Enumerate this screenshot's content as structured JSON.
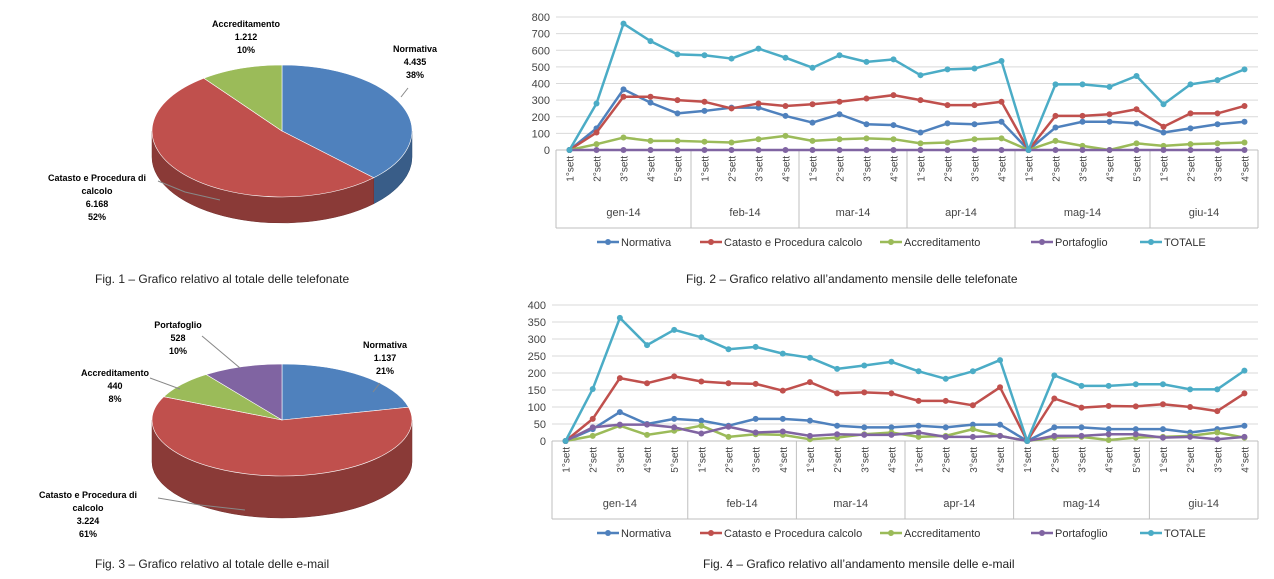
{
  "colors": {
    "normativa": "#4f81bd",
    "catasto": "#c0504d",
    "accreditamento": "#9bbb59",
    "portafoglio": "#8064a2",
    "totale": "#4bacc6"
  },
  "captions": {
    "fig1": "Fig. 1 – Grafico relativo al totale delle telefonate",
    "fig2": "Fig. 2 – Grafico relativo all’andamento mensile delle telefonate",
    "fig3": "Fig. 3 – Grafico relativo al totale delle e-mail",
    "fig4": "Fig. 4 – Grafico relativo all’andamento mensile delle e-mail"
  },
  "chart_data": [
    {
      "type": "pie",
      "slices": [
        {
          "name": "Normativa",
          "value": 4435,
          "value_label": "4.435",
          "percent": "38%"
        },
        {
          "name": "Catasto e Procedura di calcolo",
          "value": 6168,
          "value_label": "6.168",
          "percent": "52%"
        },
        {
          "name": "Accreditamento",
          "value": 1212,
          "value_label": "1.212",
          "percent": "10%"
        }
      ]
    },
    {
      "type": "line",
      "ylim": [
        0,
        800
      ],
      "yticks": [
        0,
        100,
        200,
        300,
        400,
        500,
        600,
        700,
        800
      ],
      "x": [
        "1°sett",
        "2°sett",
        "3°sett",
        "4°sett",
        "5°sett",
        "1°sett",
        "2°sett",
        "3°sett",
        "4°sett",
        "1°sett",
        "2°sett",
        "3°sett",
        "4°sett",
        "1°sett",
        "2°sett",
        "3°sett",
        "4°sett",
        "1°sett",
        "2°sett",
        "3°sett",
        "4°sett",
        "5°sett",
        "1°sett",
        "2°sett",
        "3°sett",
        "4°sett"
      ],
      "months": [
        {
          "label": "gen-14",
          "count": 5
        },
        {
          "label": "feb-14",
          "count": 4
        },
        {
          "label": "mar-14",
          "count": 4
        },
        {
          "label": "apr-14",
          "count": 4
        },
        {
          "label": "mag-14",
          "count": 5
        },
        {
          "label": "giu-14",
          "count": 4
        }
      ],
      "series": [
        {
          "name": "Normativa",
          "values": [
            0,
            130,
            365,
            285,
            220,
            235,
            255,
            255,
            205,
            165,
            215,
            155,
            150,
            105,
            160,
            155,
            170,
            0,
            135,
            170,
            170,
            160,
            105,
            130,
            155,
            170
          ]
        },
        {
          "name": "Catasto e Procedura calcolo",
          "values": [
            0,
            105,
            320,
            320,
            300,
            290,
            250,
            280,
            265,
            275,
            290,
            310,
            330,
            300,
            270,
            270,
            290,
            0,
            205,
            205,
            215,
            245,
            140,
            220,
            220,
            265
          ]
        },
        {
          "name": "Accreditamento",
          "values": [
            0,
            35,
            75,
            55,
            55,
            50,
            45,
            65,
            85,
            55,
            65,
            70,
            65,
            40,
            45,
            65,
            70,
            0,
            55,
            25,
            0,
            40,
            25,
            35,
            40,
            45
          ]
        },
        {
          "name": "Portafoglio",
          "values": [
            0,
            0,
            0,
            0,
            0,
            0,
            0,
            0,
            0,
            0,
            0,
            0,
            0,
            0,
            0,
            0,
            0,
            0,
            0,
            0,
            0,
            0,
            0,
            0,
            0,
            0
          ]
        },
        {
          "name": "TOTALE",
          "values": [
            0,
            280,
            760,
            655,
            575,
            570,
            550,
            610,
            555,
            495,
            570,
            530,
            545,
            450,
            485,
            490,
            535,
            0,
            395,
            395,
            380,
            445,
            275,
            395,
            420,
            485
          ]
        }
      ]
    },
    {
      "type": "pie",
      "slices": [
        {
          "name": "Normativa",
          "value": 1137,
          "value_label": "1.137",
          "percent": "21%"
        },
        {
          "name": "Catasto e Procedura di calcolo",
          "value": 3224,
          "value_label": "3.224",
          "percent": "61%"
        },
        {
          "name": "Accreditamento",
          "value": 440,
          "value_label": "440",
          "percent": "8%"
        },
        {
          "name": "Portafoglio",
          "value": 528,
          "value_label": "528",
          "percent": "10%"
        }
      ]
    },
    {
      "type": "line",
      "ylim": [
        0,
        400
      ],
      "yticks": [
        0,
        50,
        100,
        150,
        200,
        250,
        300,
        350,
        400
      ],
      "x": [
        "1°sett",
        "2°sett",
        "3°sett",
        "4°sett",
        "5°sett",
        "1°sett",
        "2°sett",
        "3°sett",
        "4°sett",
        "1°sett",
        "2°sett",
        "3°sett",
        "4°sett",
        "1°sett",
        "2°sett",
        "3°sett",
        "4°sett",
        "1°sett",
        "2°sett",
        "3°sett",
        "4°sett",
        "5°sett",
        "1°sett",
        "2°sett",
        "3°sett",
        "4°sett"
      ],
      "months": [
        {
          "label": "gen-14",
          "count": 5
        },
        {
          "label": "feb-14",
          "count": 4
        },
        {
          "label": "mar-14",
          "count": 4
        },
        {
          "label": "apr-14",
          "count": 4
        },
        {
          "label": "mag-14",
          "count": 5
        },
        {
          "label": "giu-14",
          "count": 4
        }
      ],
      "series": [
        {
          "name": "Normativa",
          "values": [
            0,
            35,
            85,
            50,
            65,
            60,
            45,
            65,
            65,
            60,
            45,
            40,
            40,
            45,
            40,
            48,
            48,
            0,
            40,
            40,
            35,
            35,
            35,
            25,
            35,
            45
          ]
        },
        {
          "name": "Catasto e Procedura calcolo",
          "values": [
            0,
            65,
            185,
            170,
            190,
            175,
            170,
            168,
            148,
            173,
            140,
            143,
            140,
            118,
            118,
            105,
            158,
            0,
            125,
            98,
            103,
            102,
            108,
            100,
            88,
            140
          ]
        },
        {
          "name": "Accreditamento",
          "values": [
            0,
            15,
            45,
            18,
            30,
            45,
            12,
            20,
            18,
            5,
            10,
            20,
            25,
            12,
            15,
            35,
            15,
            0,
            10,
            12,
            3,
            10,
            12,
            15,
            25,
            10
          ]
        },
        {
          "name": "Portafoglio",
          "values": [
            0,
            40,
            48,
            48,
            40,
            22,
            42,
            25,
            28,
            15,
            20,
            18,
            18,
            25,
            12,
            12,
            15,
            0,
            15,
            15,
            20,
            20,
            10,
            12,
            5,
            12
          ]
        },
        {
          "name": "TOTALE",
          "values": [
            0,
            153,
            362,
            282,
            327,
            305,
            270,
            277,
            257,
            245,
            212,
            222,
            233,
            205,
            183,
            205,
            238,
            0,
            193,
            162,
            162,
            167,
            167,
            152,
            152,
            207
          ]
        }
      ]
    }
  ]
}
